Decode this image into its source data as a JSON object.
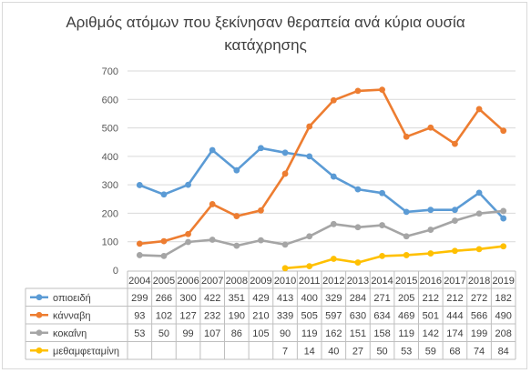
{
  "chart_data": {
    "type": "line",
    "title_lines": [
      "Αριθμός ατόμων που ξεκίνησαν θεραπεία ανά κύρια ουσία",
      "κατάχρησης"
    ],
    "x": [
      "2004",
      "2005",
      "2006",
      "2007",
      "2008",
      "2009",
      "2010",
      "2011",
      "2012",
      "2013",
      "2014",
      "2015",
      "2016",
      "2017",
      "2018",
      "2019"
    ],
    "yticks": [
      "0",
      "100",
      "200",
      "300",
      "400",
      "500",
      "600",
      "700"
    ],
    "ylim": [
      0,
      700
    ],
    "grid": true,
    "legend": "data-table",
    "series": [
      {
        "name": "οπιοειδή",
        "color": "#5b9bd5",
        "values": [
          299,
          266,
          300,
          422,
          351,
          429,
          413,
          400,
          329,
          284,
          271,
          205,
          212,
          212,
          272,
          182
        ]
      },
      {
        "name": "κάνναβη",
        "color": "#ed7d31",
        "values": [
          93,
          102,
          127,
          232,
          190,
          210,
          339,
          505,
          597,
          630,
          634,
          469,
          501,
          444,
          566,
          490
        ]
      },
      {
        "name": "κοκαΐνη",
        "color": "#a5a5a5",
        "values": [
          53,
          50,
          99,
          107,
          86,
          105,
          90,
          119,
          162,
          151,
          158,
          119,
          142,
          174,
          199,
          208
        ]
      },
      {
        "name": "μεθαμφεταμίνη",
        "color": "#ffc000",
        "values": [
          null,
          null,
          null,
          null,
          null,
          null,
          7,
          14,
          40,
          27,
          50,
          53,
          59,
          68,
          74,
          84
        ]
      }
    ]
  }
}
